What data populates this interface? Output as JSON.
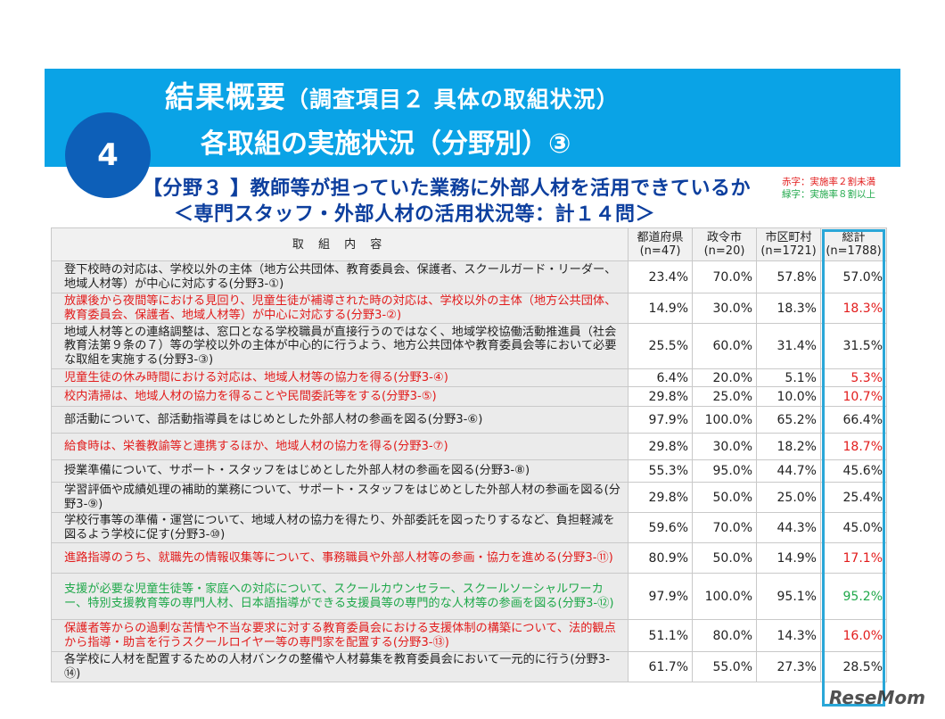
{
  "header": {
    "title_main": "結果概要",
    "title_sub": "（調査項目２ 具体の取組状況）",
    "title_line2": "各取組の実施状況（分野別）③",
    "section_number": "4"
  },
  "section": {
    "heading1": "【分野３ 】教師等が担っていた業務に外部人材を活用できているか",
    "heading2": "＜専門スタッフ・外部人材の活用状況等：計１４問＞"
  },
  "legend": {
    "red": "赤字：実施率２割未満",
    "green": "緑字：実施率８割以上"
  },
  "table": {
    "headers": [
      {
        "label": "取 組 内 容"
      },
      {
        "label": "都道府県",
        "n": "(n=47)"
      },
      {
        "label": "政令市",
        "n": "(n=20)"
      },
      {
        "label": "市区町村",
        "n": "(n=1721)"
      },
      {
        "label": "総計",
        "n": "(n=1788)"
      }
    ],
    "rows": [
      {
        "item": "登下校時の対応は、学校以外の主体（地方公共団体、教育委員会、保護者、スクールガード・リーダー、地域人材等）が中心に対応する(分野3-①)",
        "pref": "23.4%",
        "city": "70.0%",
        "muni": "57.8%",
        "total": "57.0%",
        "status": "normal"
      },
      {
        "item": "放課後から夜間等における見回り、児童生徒が補導された時の対応は、学校以外の主体（地方公共団体、教育委員会、保護者、地域人材等）が中心に対応する(分野3-②)",
        "pref": "14.9%",
        "city": "30.0%",
        "muni": "18.3%",
        "total": "18.3%",
        "status": "red"
      },
      {
        "item": "地域人材等との連絡調整は、窓口となる学校職員が直接行うのではなく、地域学校協働活動推進員（社会教育法第９条の７）等の学校以外の主体が中心的に行うよう、地方公共団体や教育委員会等において必要な取組を実施する(分野3-③)",
        "pref": "25.5%",
        "city": "60.0%",
        "muni": "31.4%",
        "total": "31.5%",
        "status": "normal"
      },
      {
        "item": "児童生徒の休み時間における対応は、地域人材等の協力を得る(分野3-④)",
        "pref": "6.4%",
        "city": "20.0%",
        "muni": "5.1%",
        "total": "5.3%",
        "status": "red"
      },
      {
        "item": "校内清掃は、地域人材の協力を得ることや民間委託等をする(分野3-⑤)",
        "pref": "29.8%",
        "city": "25.0%",
        "muni": "10.0%",
        "total": "10.7%",
        "status": "red"
      },
      {
        "item": "部活動について、部活動指導員をはじめとした外部人材の参画を図る(分野3-⑥)",
        "pref": "97.9%",
        "city": "100.0%",
        "muni": "65.2%",
        "total": "66.4%",
        "status": "normal"
      },
      {
        "item": "給食時は、栄養教諭等と連携するほか、地域人材の協力を得る(分野3-⑦)",
        "pref": "29.8%",
        "city": "30.0%",
        "muni": "18.2%",
        "total": "18.7%",
        "status": "red"
      },
      {
        "item": "授業準備について、サポート・スタッフをはじめとした外部人材の参画を図る(分野3-⑧)",
        "pref": "55.3%",
        "city": "95.0%",
        "muni": "44.7%",
        "total": "45.6%",
        "status": "normal"
      },
      {
        "item": "学習評価や成績処理の補助的業務について、サポート・スタッフをはじめとした外部人材の参画を図る(分野3-⑨)",
        "pref": "29.8%",
        "city": "50.0%",
        "muni": "25.0%",
        "total": "25.4%",
        "status": "normal"
      },
      {
        "item": "学校行事等の準備・運営について、地域人材の協力を得たり、外部委託を図ったりするなど、負担軽減を図るよう学校に促す(分野3-⑩)",
        "pref": "59.6%",
        "city": "70.0%",
        "muni": "44.3%",
        "total": "45.0%",
        "status": "normal"
      },
      {
        "item": "進路指導のうち、就職先の情報収集等について、事務職員や外部人材等の参画・協力を進める(分野3-⑪)",
        "pref": "80.9%",
        "city": "50.0%",
        "muni": "14.9%",
        "total": "17.1%",
        "status": "red"
      },
      {
        "item": "支援が必要な児童生徒等・家庭への対応について、スクールカウンセラー、スクールソーシャルワーカー、特別支援教育等の専門人材、日本語指導ができる支援員等の専門的な人材等の参画を図る(分野3-⑫)",
        "pref": "97.9%",
        "city": "100.0%",
        "muni": "95.1%",
        "total": "95.2%",
        "status": "green"
      },
      {
        "item": "保護者等からの過剰な苦情や不当な要求に対する教育委員会における支援体制の構築について、法的観点から指導・助言を行うスクールロイヤー等の専門家を配置する(分野3-⑬)",
        "pref": "51.1%",
        "city": "80.0%",
        "muni": "14.3%",
        "total": "16.0%",
        "status": "red"
      },
      {
        "item": "各学校に人材を配置するための人材バンクの整備や人材募集を教育委員会において一元的に行う(分野3-⑭)",
        "pref": "61.7%",
        "city": "55.0%",
        "muni": "27.3%",
        "total": "28.5%",
        "status": "normal"
      }
    ]
  },
  "colors": {
    "banner": "#0aa3e6",
    "circle": "#0d5fb8",
    "heading": "#0d3f9e",
    "red_text": "#e21c1c",
    "green_text": "#1fa84a",
    "highlight_border": "#2aa7d8"
  },
  "watermark": "ReseMom"
}
